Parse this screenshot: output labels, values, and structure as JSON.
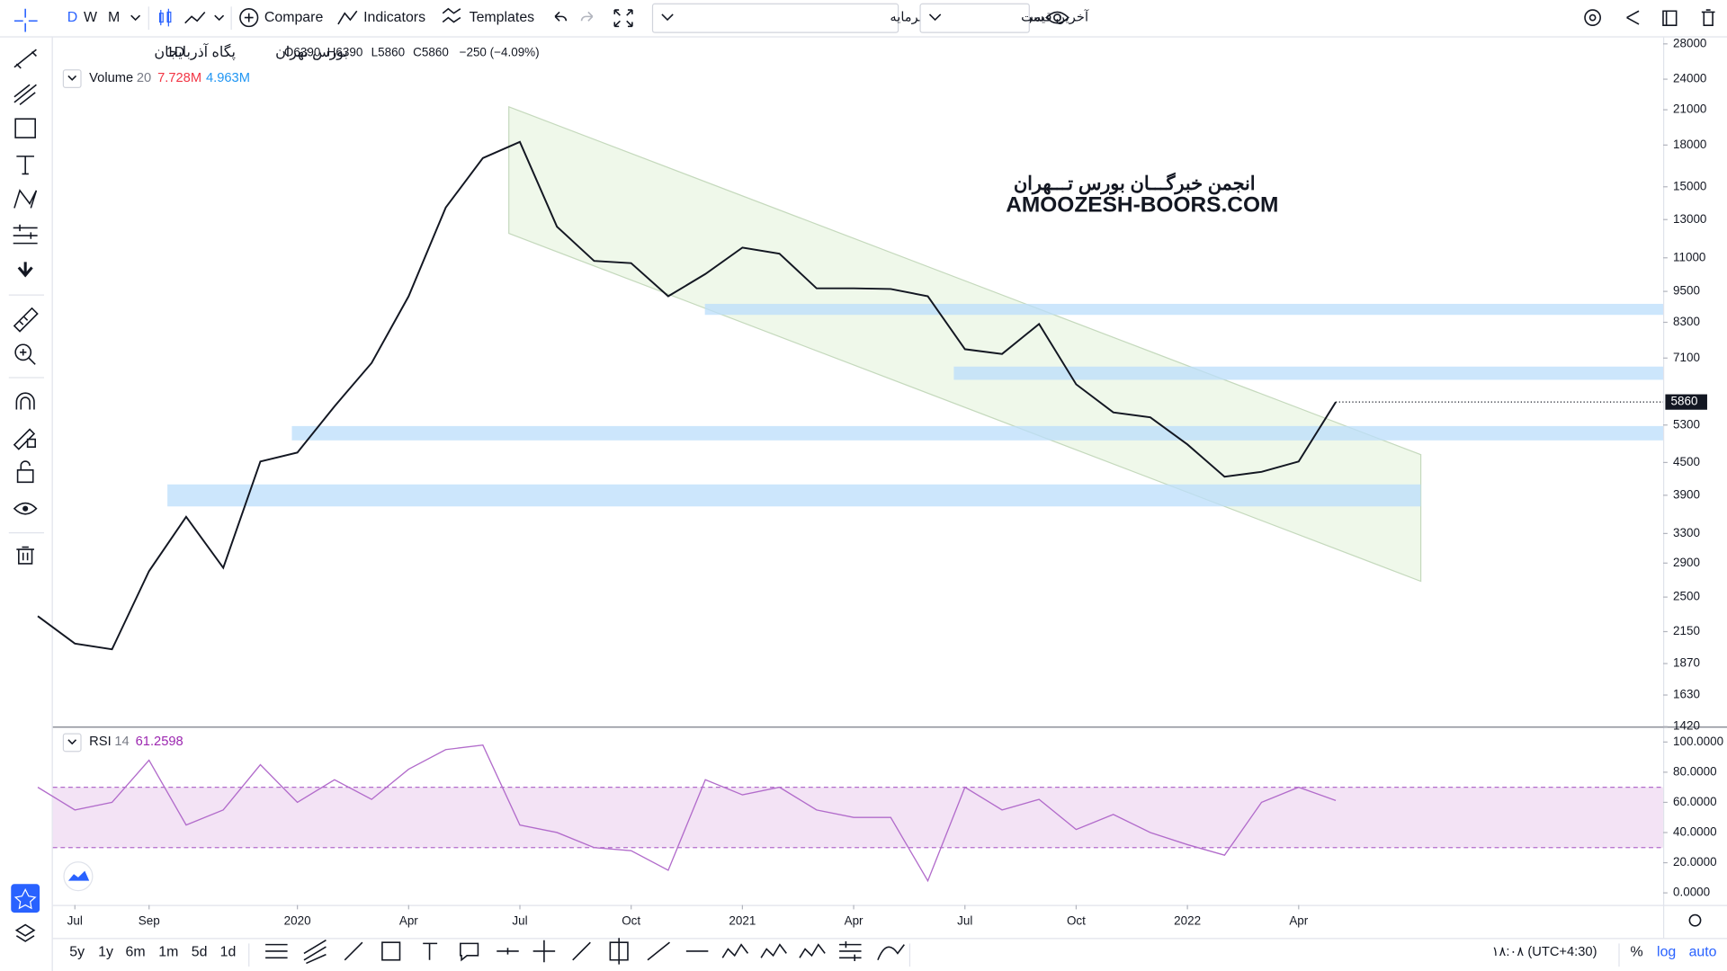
{
  "toolbar": {
    "intervals": [
      "D",
      "W",
      "M"
    ],
    "compare": "Compare",
    "indicators": "Indicators",
    "templates": "Templates",
    "dividend_dropdown": "سود نقدی و افزایش سرمایه",
    "price_dropdown": "آخرین قیمت"
  },
  "legend": {
    "symbol": "پگاه آذربایجان",
    "interval": "1D",
    "exchange": "بورس تهران",
    "open": "O6390",
    "high": "H6390",
    "low": "L5860",
    "close": "C5860",
    "change": "−250 (−4.09%)"
  },
  "volume_legend": {
    "name": "Volume",
    "length": "20",
    "value1": "7.728M",
    "value2": "4.963M"
  },
  "rsi_legend": {
    "name": "RSI",
    "length": "14",
    "value": "61.2598"
  },
  "watermark": {
    "persian": "انجمن خبرگـــان بورس تـــهران",
    "latin": "AMOOZESH-BOORS.COM"
  },
  "chart_data": [
    {
      "type": "line",
      "color": "#131722",
      "log_scale": true,
      "x": [
        "2019-06",
        "2019-07",
        "2019-08",
        "2019-09",
        "2019-10",
        "2019-11",
        "2019-12",
        "2020-01",
        "2020-02",
        "2020-03",
        "2020-04",
        "2020-05",
        "2020-06",
        "2020-07",
        "2020-08",
        "2020-09",
        "2020-10",
        "2020-11",
        "2020-12",
        "2021-01",
        "2021-02",
        "2021-03",
        "2021-04",
        "2021-05",
        "2021-06",
        "2021-07",
        "2021-08",
        "2021-09",
        "2021-10",
        "2021-11",
        "2021-12",
        "2022-01",
        "2022-02",
        "2022-03",
        "2022-04",
        "2022-05"
      ],
      "values": [
        2300,
        2040,
        1990,
        2800,
        3550,
        2840,
        4520,
        4700,
        5750,
        6950,
        9300,
        13700,
        17000,
        18250,
        12600,
        10850,
        10750,
        9300,
        10250,
        11500,
        11200,
        9630,
        9630,
        9600,
        9300,
        7380,
        7230,
        8240,
        6330,
        5600,
        5480,
        4870,
        4230,
        4320,
        4520,
        5860
      ],
      "ylim": [
        1420,
        28800
      ],
      "yticks": [
        28000,
        24000,
        21000,
        18000,
        15000,
        13000,
        11000,
        9500,
        8300,
        7100,
        5300,
        4500,
        3900,
        3300,
        2900,
        2500,
        2150,
        1870,
        1630,
        1420
      ]
    },
    {
      "type": "line",
      "color": "#b26ccb",
      "x": [
        "2019-06",
        "2019-07",
        "2019-08",
        "2019-09",
        "2019-10",
        "2019-11",
        "2019-12",
        "2020-01",
        "2020-02",
        "2020-03",
        "2020-04",
        "2020-05",
        "2020-06",
        "2020-07",
        "2020-08",
        "2020-09",
        "2020-10",
        "2020-11",
        "2020-12",
        "2021-01",
        "2021-02",
        "2021-03",
        "2021-04",
        "2021-05",
        "2021-06",
        "2021-07",
        "2021-08",
        "2021-09",
        "2021-10",
        "2021-11",
        "2021-12",
        "2022-01",
        "2022-02",
        "2022-03",
        "2022-04",
        "2022-05"
      ],
      "values": [
        70,
        55,
        60,
        88,
        45,
        55,
        85,
        60,
        75,
        62,
        82,
        95,
        98,
        45,
        40,
        30,
        28,
        15,
        75,
        65,
        70,
        55,
        50,
        50,
        8,
        70,
        55,
        62,
        42,
        52,
        40,
        32,
        25,
        60,
        70,
        61.2598
      ],
      "ylim": [
        -8,
        109.5
      ],
      "bands": [
        70,
        30
      ],
      "yticks": [
        {
          "value": 100,
          "label": "100.0000"
        },
        {
          "value": 80,
          "label": "80.0000"
        },
        {
          "value": 60,
          "label": "60.0000"
        },
        {
          "value": 40,
          "label": "40.0000"
        },
        {
          "value": 20,
          "label": "20.0000"
        },
        {
          "value": 0,
          "label": "0.0000"
        }
      ],
      "xticks": [
        {
          "value": "2019-07",
          "label": "Jul"
        },
        {
          "value": "2019-09",
          "label": "Sep"
        },
        {
          "value": "2020-01",
          "label": "2020"
        },
        {
          "value": "2020-04",
          "label": "Apr"
        },
        {
          "value": "2020-07",
          "label": "Jul"
        },
        {
          "value": "2020-10",
          "label": "Oct"
        },
        {
          "value": "2021-01",
          "label": "2021"
        },
        {
          "value": "2021-04",
          "label": "Apr"
        },
        {
          "value": "2021-07",
          "label": "Jul"
        },
        {
          "value": "2021-10",
          "label": "Oct"
        },
        {
          "value": "2022-01",
          "label": "2022"
        },
        {
          "value": "2022-04",
          "label": "Apr"
        }
      ]
    }
  ],
  "bottom_bar": {
    "ranges": [
      "5y",
      "1y",
      "6m",
      "1m",
      "5d",
      "1d"
    ],
    "clock": "۱۸:۰۸ (UTC+4:30)",
    "percent": "%",
    "log": "log",
    "auto": "auto"
  }
}
